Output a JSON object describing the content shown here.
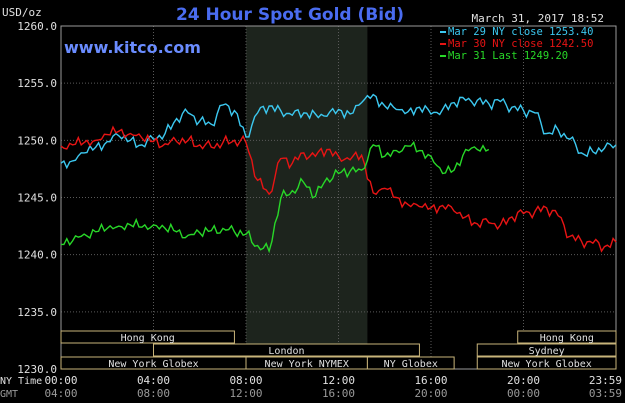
{
  "chart_data": {
    "type": "line",
    "title": "24 Hour Spot Gold (Bid)",
    "watermark": "www.kitco.com",
    "timestamp": "March 31, 2017 18:52",
    "ylabel": "USD/oz",
    "ylim": [
      1230.0,
      1260.0
    ],
    "y_ticks": [
      "1260.0",
      "1255.0",
      "1250.0",
      "1245.0",
      "1240.0",
      "1235.0",
      "1230.0"
    ],
    "x_axis_rows": [
      {
        "label": "NY Time",
        "ticks": [
          "00:00",
          "04:00",
          "08:00",
          "12:00",
          "16:00",
          "20:00",
          "23:59"
        ]
      },
      {
        "label": "GMT",
        "ticks": [
          "04:00",
          "08:00",
          "12:00",
          "16:00",
          "20:00",
          "00:00",
          "03:59"
        ]
      }
    ],
    "grid": true,
    "legend_position": "top-right",
    "series": [
      {
        "name": "Mar 29 NY close 1253.40",
        "color": "#3cc8f0",
        "x_hours": [
          0,
          0.5,
          1,
          1.5,
          2,
          2.5,
          3,
          3.5,
          4,
          4.5,
          5,
          5.5,
          6,
          6.5,
          7,
          7.5,
          8,
          8.5,
          9,
          9.5,
          10,
          10.5,
          11,
          11.5,
          12,
          12.5,
          13,
          13.5,
          14,
          14.5,
          15,
          15.5,
          16,
          16.5,
          17,
          17.5,
          18,
          18.5,
          19,
          19.5,
          20,
          20.5,
          21,
          21.5,
          22,
          22.5,
          23,
          23.5,
          24
        ],
        "values": [
          1248.0,
          1248.2,
          1248.9,
          1249.4,
          1249.9,
          1250.4,
          1250.0,
          1249.6,
          1250.1,
          1250.6,
          1251.9,
          1252.4,
          1251.7,
          1251.4,
          1253.1,
          1252.6,
          1250.3,
          1252.4,
          1253.0,
          1252.6,
          1252.2,
          1252.4,
          1252.3,
          1252.1,
          1252.7,
          1252.3,
          1253.3,
          1254.0,
          1253.0,
          1252.7,
          1252.5,
          1252.9,
          1252.3,
          1252.7,
          1253.3,
          1253.5,
          1253.5,
          1253.2,
          1253.4,
          1252.9,
          1252.6,
          1252.4,
          1250.6,
          1250.9,
          1250.1,
          1248.9,
          1249.0,
          1249.3,
          1249.6
        ]
      },
      {
        "name": "Mar 30 NY close 1242.50",
        "color": "#e81414",
        "x_hours": [
          0,
          0.5,
          1,
          1.5,
          2,
          2.5,
          3,
          3.5,
          4,
          4.5,
          5,
          5.5,
          6,
          6.5,
          7,
          7.5,
          8,
          8.5,
          9,
          9.5,
          10,
          10.5,
          11,
          11.5,
          12,
          12.5,
          13,
          13.5,
          14,
          14.5,
          15,
          15.5,
          16,
          16.5,
          17,
          17.5,
          18,
          18.5,
          19,
          19.5,
          20,
          20.5,
          21,
          21.5,
          22,
          22.5,
          23,
          23.5,
          24
        ],
        "values": [
          1249.5,
          1249.6,
          1249.8,
          1250.0,
          1250.5,
          1250.8,
          1250.6,
          1250.2,
          1249.9,
          1249.7,
          1249.9,
          1250.0,
          1249.6,
          1249.4,
          1249.8,
          1250.0,
          1249.8,
          1246.5,
          1245.3,
          1248.4,
          1248.0,
          1248.9,
          1248.6,
          1249.2,
          1248.6,
          1248.3,
          1248.7,
          1245.4,
          1245.8,
          1245.0,
          1244.4,
          1244.2,
          1244.1,
          1244.3,
          1243.8,
          1243.3,
          1242.7,
          1242.8,
          1242.6,
          1243.3,
          1243.6,
          1243.8,
          1244.1,
          1243.4,
          1241.6,
          1241.2,
          1241.0,
          1240.7,
          1241.1
        ]
      },
      {
        "name": "Mar 31 Last 1249.20",
        "color": "#28d828",
        "x_hours": [
          0,
          0.5,
          1,
          1.5,
          2,
          2.5,
          3,
          3.5,
          4,
          4.5,
          5,
          5.5,
          6,
          6.5,
          7,
          7.5,
          8,
          8.5,
          9,
          9.5,
          10,
          10.5,
          11,
          11.5,
          12,
          12.5,
          13,
          13.5,
          14,
          14.5,
          15,
          15.5,
          16,
          16.5,
          17,
          17.5,
          18,
          18.5
        ],
        "values": [
          1240.9,
          1241.2,
          1241.8,
          1242.0,
          1242.3,
          1242.5,
          1242.6,
          1242.4,
          1242.6,
          1242.3,
          1242.0,
          1241.7,
          1241.9,
          1242.1,
          1242.3,
          1242.0,
          1241.8,
          1240.8,
          1240.3,
          1244.9,
          1245.6,
          1246.3,
          1245.1,
          1246.7,
          1247.1,
          1247.3,
          1247.4,
          1249.6,
          1248.6,
          1249.1,
          1249.5,
          1249.1,
          1248.6,
          1247.1,
          1247.4,
          1249.2,
          1249.2,
          1249.2
        ]
      }
    ]
  },
  "sessions": [
    {
      "name": "Hong Kong",
      "row": 0,
      "start": 0,
      "end": 7.5
    },
    {
      "name": "London",
      "row": 1,
      "start": 4,
      "end": 15.5
    },
    {
      "name": "New York Globex",
      "row": 2,
      "start": 0,
      "end": 8
    },
    {
      "name": "New York NYMEX",
      "row": 2,
      "start": 8,
      "end": 13.25
    },
    {
      "name": "NY Globex",
      "row": 2,
      "start": 13.25,
      "end": 17
    },
    {
      "name": "Hong Kong",
      "row": 0,
      "start": 19.75,
      "end": 24
    },
    {
      "name": "Sydney",
      "row": 1,
      "start": 18,
      "end": 24
    },
    {
      "name": "New York Globex",
      "row": 2,
      "start": 18,
      "end": 24
    }
  ],
  "highlight_band_hours": [
    8,
    13.25
  ]
}
